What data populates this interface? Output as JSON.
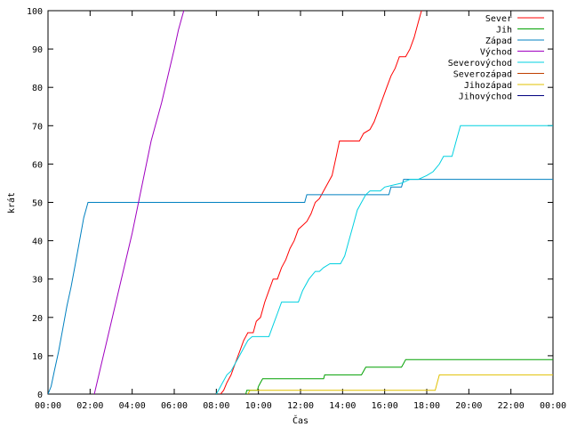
{
  "chart_data": {
    "type": "line",
    "xlabel": "Čas",
    "ylabel": "krát",
    "xlim": [
      0,
      24
    ],
    "ylim": [
      0,
      100
    ],
    "grid": false,
    "legend_position": "top-right",
    "x_ticks": [
      {
        "value": 0,
        "label": "00:00"
      },
      {
        "value": 2,
        "label": "02:00"
      },
      {
        "value": 4,
        "label": "04:00"
      },
      {
        "value": 6,
        "label": "06:00"
      },
      {
        "value": 8,
        "label": "08:00"
      },
      {
        "value": 10,
        "label": "10:00"
      },
      {
        "value": 12,
        "label": "12:00"
      },
      {
        "value": 14,
        "label": "14:00"
      },
      {
        "value": 16,
        "label": "16:00"
      },
      {
        "value": 18,
        "label": "18:00"
      },
      {
        "value": 20,
        "label": "20:00"
      },
      {
        "value": 22,
        "label": "22:00"
      },
      {
        "value": 24,
        "label": "00:00"
      }
    ],
    "y_ticks": [
      0,
      10,
      20,
      30,
      40,
      50,
      60,
      70,
      80,
      90,
      100
    ],
    "series": [
      {
        "name": "Sever",
        "color": "#ff0000",
        "points": [
          [
            8.2,
            0
          ],
          [
            8.35,
            1
          ],
          [
            8.5,
            3
          ],
          [
            8.7,
            5
          ],
          [
            8.9,
            8
          ],
          [
            9.1,
            11
          ],
          [
            9.3,
            14
          ],
          [
            9.5,
            16
          ],
          [
            9.75,
            16
          ],
          [
            9.9,
            19
          ],
          [
            10.1,
            20
          ],
          [
            10.3,
            24
          ],
          [
            10.5,
            27
          ],
          [
            10.7,
            30
          ],
          [
            10.9,
            30
          ],
          [
            11.1,
            33
          ],
          [
            11.3,
            35
          ],
          [
            11.5,
            38
          ],
          [
            11.7,
            40
          ],
          [
            11.9,
            43
          ],
          [
            12.1,
            44
          ],
          [
            12.3,
            45
          ],
          [
            12.5,
            47
          ],
          [
            12.7,
            50
          ],
          [
            12.9,
            51
          ],
          [
            13.1,
            53
          ],
          [
            13.3,
            55
          ],
          [
            13.5,
            57
          ],
          [
            13.7,
            62
          ],
          [
            13.85,
            66
          ],
          [
            14.0,
            66
          ],
          [
            14.5,
            66
          ],
          [
            14.8,
            66
          ],
          [
            15.0,
            68
          ],
          [
            15.3,
            69
          ],
          [
            15.5,
            71
          ],
          [
            15.7,
            74
          ],
          [
            15.9,
            77
          ],
          [
            16.1,
            80
          ],
          [
            16.3,
            83
          ],
          [
            16.5,
            85
          ],
          [
            16.7,
            88
          ],
          [
            17.0,
            88
          ],
          [
            17.2,
            90
          ],
          [
            17.4,
            93
          ],
          [
            17.6,
            97
          ],
          [
            17.75,
            100
          ]
        ]
      },
      {
        "name": "Jih",
        "color": "#00a000",
        "points": [
          [
            9.4,
            0
          ],
          [
            9.45,
            1
          ],
          [
            9.6,
            1
          ],
          [
            9.95,
            1
          ],
          [
            10.0,
            2
          ],
          [
            10.1,
            3
          ],
          [
            10.2,
            4
          ],
          [
            13.1,
            4
          ],
          [
            13.15,
            5
          ],
          [
            14.9,
            5
          ],
          [
            15.0,
            6
          ],
          [
            15.1,
            7
          ],
          [
            16.8,
            7
          ],
          [
            16.9,
            8
          ],
          [
            17.0,
            9
          ],
          [
            24,
            9
          ]
        ]
      },
      {
        "name": "Západ",
        "color": "#0080c0",
        "points": [
          [
            0,
            0
          ],
          [
            0.15,
            2
          ],
          [
            0.3,
            6
          ],
          [
            0.5,
            11
          ],
          [
            0.7,
            17
          ],
          [
            0.9,
            23
          ],
          [
            1.1,
            28
          ],
          [
            1.3,
            34
          ],
          [
            1.5,
            40
          ],
          [
            1.7,
            46
          ],
          [
            1.9,
            50
          ],
          [
            2.1,
            50
          ],
          [
            4,
            50
          ],
          [
            8,
            50
          ],
          [
            12.2,
            50
          ],
          [
            12.3,
            52
          ],
          [
            12.5,
            52
          ],
          [
            16.2,
            52
          ],
          [
            16.3,
            54
          ],
          [
            16.8,
            54
          ],
          [
            16.9,
            56
          ],
          [
            24,
            56
          ]
        ]
      },
      {
        "name": "Východ",
        "color": "#a000c0",
        "points": [
          [
            2.2,
            0
          ],
          [
            2.5,
            7
          ],
          [
            2.8,
            14
          ],
          [
            3.1,
            21
          ],
          [
            3.4,
            28
          ],
          [
            3.7,
            35
          ],
          [
            4.0,
            42
          ],
          [
            4.3,
            50
          ],
          [
            4.6,
            58
          ],
          [
            4.9,
            66
          ],
          [
            5.1,
            70
          ],
          [
            5.4,
            76
          ],
          [
            5.7,
            83
          ],
          [
            6.0,
            90
          ],
          [
            6.2,
            95
          ],
          [
            6.45,
            100
          ]
        ]
      },
      {
        "name": "Severovýchod",
        "color": "#00d0e0",
        "points": [
          [
            8.0,
            0
          ],
          [
            8.1,
            1
          ],
          [
            8.3,
            3
          ],
          [
            8.5,
            5
          ],
          [
            8.7,
            6
          ],
          [
            8.9,
            8
          ],
          [
            9.1,
            10
          ],
          [
            9.3,
            12
          ],
          [
            9.5,
            14
          ],
          [
            9.7,
            15
          ],
          [
            10.5,
            15
          ],
          [
            10.7,
            18
          ],
          [
            10.9,
            21
          ],
          [
            11.1,
            24
          ],
          [
            11.6,
            24
          ],
          [
            11.9,
            24
          ],
          [
            12.1,
            27
          ],
          [
            12.4,
            30
          ],
          [
            12.7,
            32
          ],
          [
            12.9,
            32
          ],
          [
            13.1,
            33
          ],
          [
            13.4,
            34
          ],
          [
            13.9,
            34
          ],
          [
            14.1,
            36
          ],
          [
            14.3,
            40
          ],
          [
            14.5,
            44
          ],
          [
            14.7,
            48
          ],
          [
            14.9,
            50
          ],
          [
            15.1,
            52
          ],
          [
            15.3,
            53
          ],
          [
            15.8,
            53
          ],
          [
            16.0,
            54
          ],
          [
            16.8,
            55
          ],
          [
            17.2,
            56
          ],
          [
            17.6,
            56
          ],
          [
            18.0,
            57
          ],
          [
            18.3,
            58
          ],
          [
            18.6,
            60
          ],
          [
            18.8,
            62
          ],
          [
            19.2,
            62
          ],
          [
            19.4,
            66
          ],
          [
            19.6,
            70
          ],
          [
            24,
            70
          ]
        ]
      },
      {
        "name": "Severozápad",
        "color": "#c04000",
        "points": []
      },
      {
        "name": "Jihozápad",
        "color": "#e0c000",
        "points": [
          [
            9.5,
            0
          ],
          [
            9.6,
            1
          ],
          [
            18.4,
            1
          ],
          [
            18.5,
            3
          ],
          [
            18.6,
            5
          ],
          [
            24,
            5
          ]
        ]
      },
      {
        "name": "Jihovýchod",
        "color": "#000080",
        "points": []
      }
    ]
  }
}
